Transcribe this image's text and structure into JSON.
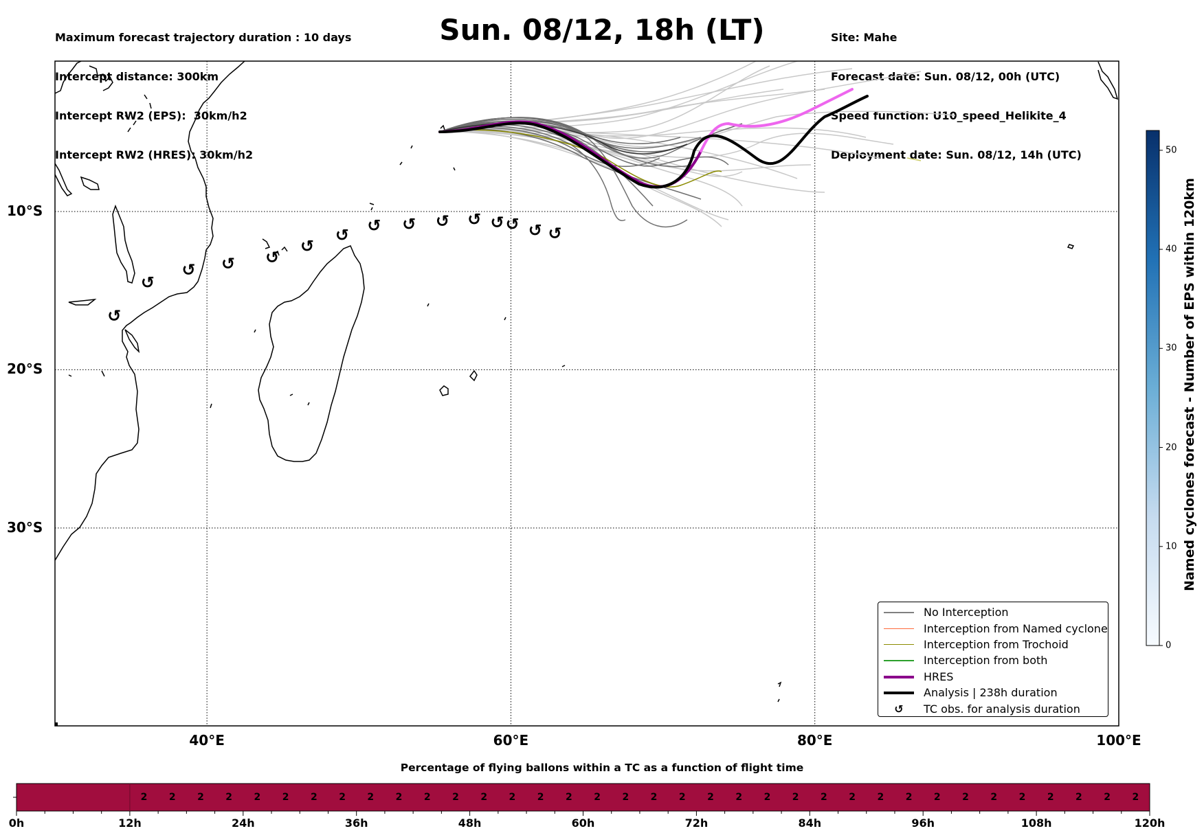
{
  "header": {
    "left_lines": [
      "Maximum forecast trajectory duration : 10 days",
      "Intercept distance: 300km",
      "Intercept RW2 (EPS):  30km/h2",
      "Intercept RW2 (HRES): 30km/h2"
    ],
    "right_lines": [
      "Site: Mahe",
      "Forecast date: Sun. 08/12, 00h (UTC)",
      "Speed function: U10_speed_Helikite_4",
      "Deployment date: Sun. 08/12, 14h (UTC)"
    ],
    "title": "Sun. 08/12, 18h (LT)"
  },
  "map": {
    "lat_labels": [
      "10°S",
      "20°S",
      "30°S"
    ],
    "lon_labels": [
      "40°E",
      "60°E",
      "80°E",
      "100°E"
    ],
    "lat_values": [
      -10,
      -20,
      -30
    ],
    "lon_values": [
      40,
      60,
      80,
      100
    ],
    "extent": {
      "lon_min": 30,
      "lon_max": 100,
      "lat_max": -0.5,
      "lat_min": -42.5
    },
    "tc_symbol": "↺",
    "tc_obs": [
      [
        33.9,
        -16.6
      ],
      [
        36.1,
        -14.5
      ],
      [
        38.8,
        -13.7
      ],
      [
        41.4,
        -13.3
      ],
      [
        44.3,
        -12.9
      ],
      [
        46.6,
        -12.2
      ],
      [
        48.9,
        -11.5
      ],
      [
        51.0,
        -10.9
      ],
      [
        53.3,
        -10.8
      ],
      [
        55.5,
        -10.6
      ],
      [
        57.6,
        -10.5
      ],
      [
        59.1,
        -10.7
      ],
      [
        60.1,
        -10.8
      ],
      [
        61.6,
        -11.2
      ],
      [
        62.9,
        -11.4
      ]
    ]
  },
  "legend": {
    "items": [
      {
        "label": "No Interception",
        "color": "#808080",
        "style": "thin"
      },
      {
        "label": "Interception from Named cyclone",
        "color": "#ff6a3a",
        "style": "thin"
      },
      {
        "label": "Interception from Trochoid",
        "color": "#8b8b00",
        "style": "thin"
      },
      {
        "label": "Interception from both",
        "color": "#2ca02c",
        "style": "thin"
      },
      {
        "label": "HRES",
        "color": "#8b008b",
        "style": "thick"
      },
      {
        "label": "Analysis | 238h duration",
        "color": "#000000",
        "style": "thick"
      },
      {
        "label": "TC obs. for analysis duration",
        "color": "#000000",
        "style": "marker"
      }
    ]
  },
  "colorbar": {
    "label": "Named cyclones forecast - Number of EPS within 120km",
    "ticks": [
      "0",
      "10",
      "20",
      "30",
      "40",
      "50"
    ],
    "range": [
      0,
      52
    ],
    "colors": [
      "#f7fbff",
      "#c6dbef",
      "#6baed6",
      "#2171b5",
      "#08306b"
    ]
  },
  "time_bar": {
    "title": "Percentage of flying ballons within a TC as a function of flight time",
    "tick_labels": [
      "0h",
      "12h",
      "24h",
      "36h",
      "48h",
      "60h",
      "72h",
      "84h",
      "96h",
      "108h",
      "120h"
    ],
    "max_hours": 120,
    "first_bin_end_h": 12,
    "cell_value": "2",
    "cell_count": 36,
    "color": "#a10d3e"
  }
}
